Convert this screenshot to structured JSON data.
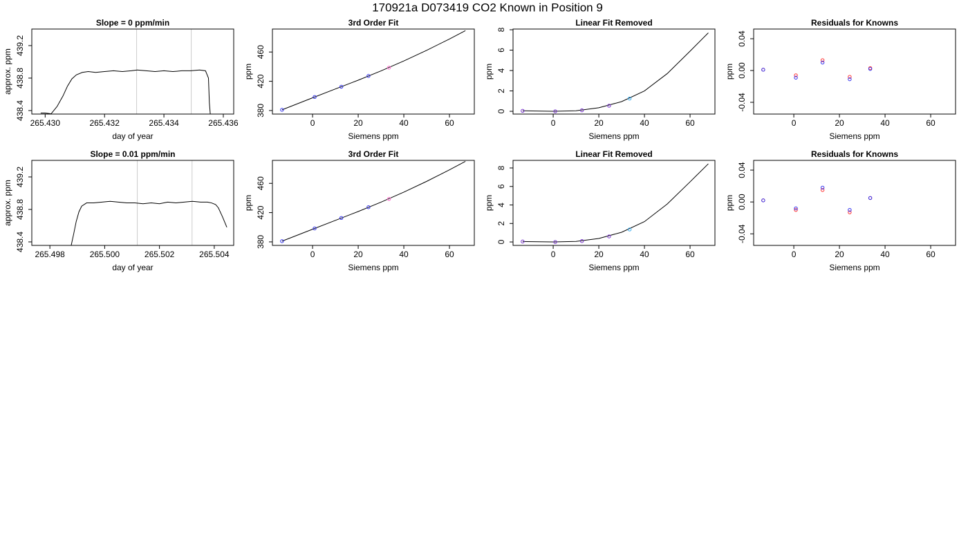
{
  "title": "170921a     D073419   CO2 Known in Position  9",
  "chart_data": [
    {
      "type": "line",
      "title": "Slope =  0  ppm/min",
      "xlabel": "day of year",
      "ylabel": "approx. ppm",
      "color": "#000000",
      "x": [
        265.42985,
        265.43,
        265.4302,
        265.4304,
        265.4306,
        265.43075,
        265.4309,
        265.43105,
        265.43125,
        265.43145,
        265.4317,
        265.432,
        265.4323,
        265.4326,
        265.4329,
        265.4331,
        265.4334,
        265.4337,
        265.434,
        265.4343,
        265.4346,
        265.4349,
        265.4352,
        265.4354,
        265.4355,
        265.43553,
        265.43556
      ],
      "values": [
        438.37,
        438.37,
        438.36,
        438.45,
        438.58,
        438.7,
        438.79,
        438.84,
        438.87,
        438.88,
        438.87,
        438.88,
        438.89,
        438.88,
        438.89,
        438.9,
        438.89,
        438.88,
        438.89,
        438.88,
        438.89,
        438.89,
        438.9,
        438.89,
        438.8,
        438.5,
        438.36
      ],
      "vlines": [
        265.43308,
        265.43492
      ],
      "vline_color": "#cccccc",
      "xlim": [
        265.42955,
        265.43635
      ],
      "ylim": [
        438.357,
        439.404
      ],
      "xticks": [
        {
          "value": 265.43,
          "label": "265.430"
        },
        {
          "value": 265.432,
          "label": "265.432"
        },
        {
          "value": 265.434,
          "label": "265.434"
        },
        {
          "value": 265.436,
          "label": "265.436"
        }
      ],
      "yticks": [
        438.4,
        438.8,
        439.2
      ]
    },
    {
      "type": "scatter",
      "title": "3rd Order Fit",
      "xlabel": "Siemens ppm",
      "ylabel": "ppm",
      "x": [
        -13.4,
        0.9,
        12.6,
        24.5,
        33.5
      ],
      "series": [
        {
          "color": "#3333ee",
          "values": [
            381.0,
            398.5,
            412.6,
            427.3,
            null
          ]
        },
        {
          "color": "#ff66cc",
          "values": [
            null,
            null,
            null,
            null,
            438.6
          ]
        }
      ],
      "curve": {
        "color": "#000000",
        "x": [
          -13.4,
          0,
          10,
          20,
          30,
          40,
          50,
          60,
          67
        ],
        "y": [
          381.0,
          397.4,
          409.5,
          421.5,
          434.2,
          447.8,
          462.3,
          477.8,
          489.2
        ]
      },
      "xlim": [
        -17.6,
        70.9
      ],
      "ylim": [
        375.2,
        491.4
      ],
      "xticks": [
        0,
        20,
        40,
        60
      ],
      "yticks": [
        380,
        420,
        460
      ]
    },
    {
      "type": "scatter",
      "title": "Linear Fit Removed",
      "xlabel": "Siemens ppm",
      "ylabel": "ppm",
      "x": [
        -13.4,
        0.9,
        12.6,
        24.5,
        33.5
      ],
      "series": [
        {
          "color": "#7733cc",
          "values": [
            0.05,
            0.0,
            0.1,
            0.55,
            null
          ]
        },
        {
          "color": "#33aaee",
          "values": [
            null,
            null,
            null,
            null,
            1.25
          ]
        }
      ],
      "curve": {
        "color": "#000000",
        "x": [
          -13.4,
          0,
          10,
          20,
          30,
          40,
          50,
          60,
          68
        ],
        "y": [
          0.05,
          0.0,
          0.05,
          0.35,
          0.95,
          2.0,
          3.7,
          5.9,
          7.7
        ]
      },
      "xlim": [
        -17.6,
        70.9
      ],
      "ylim": [
        -0.27,
        8.07
      ],
      "xticks": [
        0,
        20,
        40,
        60
      ],
      "yticks": [
        0,
        2,
        4,
        6,
        8
      ]
    },
    {
      "type": "scatter",
      "title": "Residuals for Knowns",
      "xlabel": "Siemens ppm",
      "ylabel": "ppm",
      "x": [
        -13.4,
        0.9,
        12.6,
        24.5,
        33.5
      ],
      "series": [
        {
          "color": "#ff3333",
          "values": [
            0.001,
            -0.006,
            0.013,
            -0.008,
            0.003
          ]
        },
        {
          "color": "#3333ee",
          "values": [
            0.001,
            -0.009,
            0.01,
            -0.011,
            0.002
          ]
        }
      ],
      "xlim": [
        -17.6,
        70.9
      ],
      "ylim": [
        -0.0548,
        0.0522
      ],
      "xticks": [
        0,
        20,
        40,
        60
      ],
      "yticks": [
        {
          "value": -0.04,
          "label": "-0.04"
        },
        {
          "value": 0,
          "label": "0.00"
        },
        {
          "value": 0.04,
          "label": "0.04"
        }
      ]
    },
    {
      "type": "line",
      "title": "Slope =  0.01  ppm/min",
      "xlabel": "day of year",
      "ylabel": "approx. ppm",
      "color": "#000000",
      "x": [
        265.49878,
        265.49887,
        265.49896,
        265.49906,
        265.49916,
        265.49934,
        265.4996,
        265.4999,
        265.5002,
        265.5005,
        265.5008,
        265.5011,
        265.5014,
        265.5017,
        265.502,
        265.5023,
        265.5026,
        265.5029,
        265.5032,
        265.5035,
        265.50375,
        265.5039,
        265.50405,
        265.50415,
        265.5043,
        265.50446
      ],
      "values": [
        438.36,
        438.5,
        438.65,
        438.77,
        438.84,
        438.88,
        438.88,
        438.89,
        438.9,
        438.89,
        438.88,
        438.88,
        438.87,
        438.88,
        438.87,
        438.89,
        438.88,
        438.89,
        438.9,
        438.89,
        438.89,
        438.88,
        438.86,
        438.82,
        438.71,
        438.58
      ],
      "vlines": [
        265.50119,
        265.50319
      ],
      "vline_color": "#cccccc",
      "xlim": [
        265.49734,
        265.50471
      ],
      "ylim": [
        438.357,
        439.404
      ],
      "xticks": [
        {
          "value": 265.498,
          "label": "265.498"
        },
        {
          "value": 265.5,
          "label": "265.500"
        },
        {
          "value": 265.502,
          "label": "265.502"
        },
        {
          "value": 265.504,
          "label": "265.504"
        }
      ],
      "yticks": [
        438.4,
        438.8,
        439.2
      ]
    },
    {
      "type": "scatter",
      "title": "3rd Order Fit",
      "xlabel": "Siemens ppm",
      "ylabel": "ppm",
      "x": [
        -13.4,
        0.9,
        12.6,
        24.5,
        33.5
      ],
      "series": [
        {
          "color": "#3333ee",
          "values": [
            381.0,
            398.4,
            412.7,
            427.4,
            null
          ]
        },
        {
          "color": "#ff66cc",
          "values": [
            null,
            null,
            null,
            null,
            438.7
          ]
        }
      ],
      "curve": {
        "color": "#000000",
        "x": [
          -13.4,
          0,
          10,
          20,
          30,
          40,
          50,
          60,
          67
        ],
        "y": [
          381.0,
          397.3,
          409.4,
          421.5,
          434.3,
          448.0,
          462.7,
          478.5,
          490.0
        ]
      },
      "xlim": [
        -17.6,
        70.9
      ],
      "ylim": [
        375.2,
        491.4
      ],
      "xticks": [
        0,
        20,
        40,
        60
      ],
      "yticks": [
        380,
        420,
        460
      ]
    },
    {
      "type": "scatter",
      "title": "Linear Fit Removed",
      "xlabel": "Siemens ppm",
      "ylabel": "ppm",
      "x": [
        -13.4,
        0.9,
        12.6,
        24.5,
        33.5
      ],
      "series": [
        {
          "color": "#7733cc",
          "values": [
            0.05,
            0.0,
            0.1,
            0.6,
            null
          ]
        },
        {
          "color": "#33aaee",
          "values": [
            null,
            null,
            null,
            null,
            1.35
          ]
        }
      ],
      "curve": {
        "color": "#000000",
        "x": [
          -13.4,
          0,
          10,
          20,
          30,
          40,
          50,
          60,
          68
        ],
        "y": [
          0.05,
          0.0,
          0.06,
          0.38,
          1.05,
          2.2,
          4.1,
          6.5,
          8.45
        ]
      },
      "xlim": [
        -17.6,
        70.9
      ],
      "ylim": [
        -0.37,
        8.82
      ],
      "xticks": [
        0,
        20,
        40,
        60
      ],
      "yticks": [
        0,
        2,
        4,
        6,
        8
      ]
    },
    {
      "type": "scatter",
      "title": "Residuals for Knowns",
      "xlabel": "Siemens ppm",
      "ylabel": "ppm",
      "x": [
        -13.4,
        0.9,
        12.6,
        24.5,
        33.5
      ],
      "series": [
        {
          "color": "#ff3333",
          "values": [
            0.002,
            -0.01,
            0.015,
            -0.013,
            0.005
          ]
        },
        {
          "color": "#3333ee",
          "values": [
            0.002,
            -0.008,
            0.018,
            -0.01,
            0.005
          ]
        }
      ],
      "xlim": [
        -17.6,
        70.9
      ],
      "ylim": [
        -0.0545,
        0.0522
      ],
      "xticks": [
        0,
        20,
        40,
        60
      ],
      "yticks": [
        {
          "value": -0.04,
          "label": "-0.04"
        },
        {
          "value": 0,
          "label": "0.00"
        },
        {
          "value": 0.04,
          "label": "0.04"
        }
      ]
    }
  ]
}
